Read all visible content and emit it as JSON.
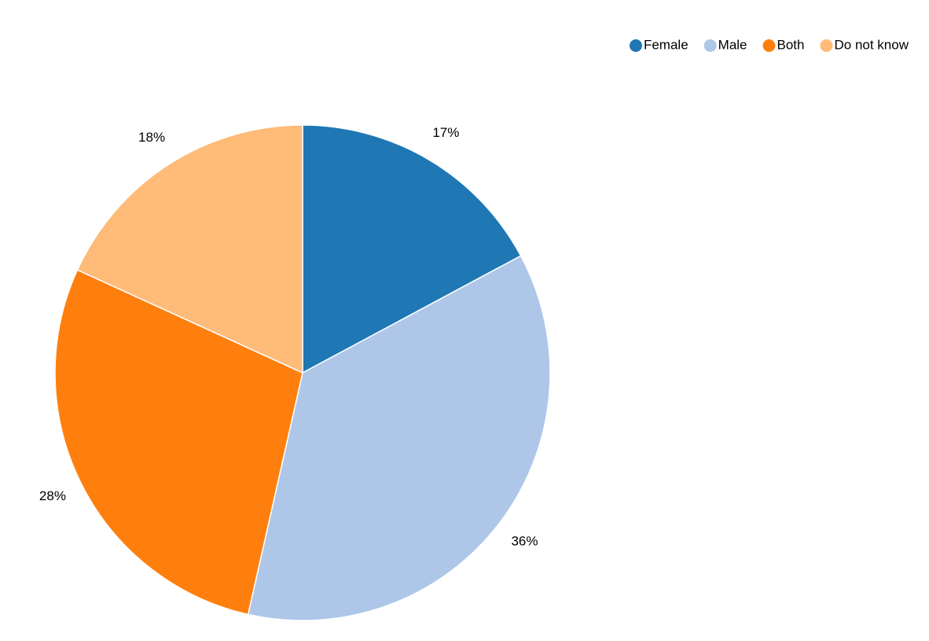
{
  "chart_data": {
    "type": "pie",
    "categories": [
      "Female",
      "Male",
      "Both",
      "Do not know"
    ],
    "values": [
      17,
      36,
      28,
      18
    ],
    "labels": [
      "17%",
      "36%",
      "28%",
      "18%"
    ],
    "colors": [
      "#1f77b4",
      "#aec7e8",
      "#ff7f0e",
      "#ffbb78"
    ],
    "legend_position": "top-right",
    "start_angle": "12 o'clock",
    "direction": "clockwise"
  }
}
